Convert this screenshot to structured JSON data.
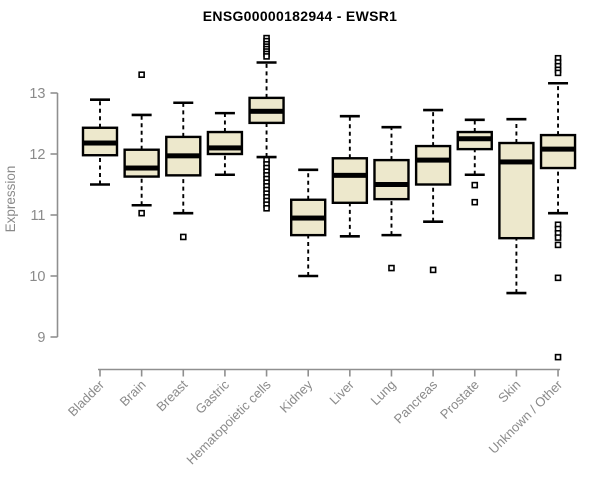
{
  "header": {
    "title": "ENSG00000182944 - EWSR1"
  },
  "chart_data": {
    "type": "boxplot",
    "title": "ENSG00000182944 - EWSR1",
    "xlabel": "",
    "ylabel": "Expression",
    "ylim": [
      8.5,
      14.0
    ],
    "yticks": [
      9,
      10,
      11,
      12,
      13
    ],
    "grid": false,
    "legend": "none",
    "colors": {
      "box_fill": "#ede8cc",
      "box_stroke": "#000000",
      "median": "#000000",
      "whisker": "#000000",
      "axis": "#8f8f8f",
      "tick_text": "#8a8a8a",
      "title_text": "#000000",
      "background": "#ffffff"
    },
    "categories": [
      "Bladder",
      "Brain",
      "Breast",
      "Gastric",
      "Hematopoietic cells",
      "Kidney",
      "Liver",
      "Lung",
      "Pancreas",
      "Prostate",
      "Skin",
      "Unknown / Other"
    ],
    "series": [
      {
        "name": "Bladder",
        "low": 11.5,
        "q1": 11.98,
        "median": 12.18,
        "q3": 12.43,
        "high": 12.89,
        "outliers": []
      },
      {
        "name": "Brain",
        "low": 11.16,
        "q1": 11.63,
        "median": 11.77,
        "q3": 12.07,
        "high": 12.64,
        "outliers": [
          13.3,
          11.03
        ]
      },
      {
        "name": "Breast",
        "low": 11.03,
        "q1": 11.65,
        "median": 11.97,
        "q3": 12.28,
        "high": 12.84,
        "outliers": [
          10.64
        ]
      },
      {
        "name": "Gastric",
        "low": 11.66,
        "q1": 12.0,
        "median": 12.1,
        "q3": 12.36,
        "high": 12.67,
        "outliers": []
      },
      {
        "name": "Hematopoietic cells",
        "low": 11.95,
        "q1": 12.51,
        "median": 12.7,
        "q3": 12.92,
        "high": 13.5,
        "outliers": [
          13.9,
          13.85,
          13.8,
          13.76,
          13.72,
          13.68,
          13.64,
          13.6,
          11.9,
          11.83,
          11.77,
          11.71,
          11.65,
          11.59,
          11.53,
          11.47,
          11.41,
          11.35,
          11.29,
          11.23,
          11.17,
          11.11
        ]
      },
      {
        "name": "Kidney",
        "low": 10.0,
        "q1": 10.67,
        "median": 10.95,
        "q3": 11.25,
        "high": 11.74,
        "outliers": []
      },
      {
        "name": "Liver",
        "low": 10.65,
        "q1": 11.2,
        "median": 11.65,
        "q3": 11.93,
        "high": 12.62,
        "outliers": []
      },
      {
        "name": "Lung",
        "low": 10.67,
        "q1": 11.26,
        "median": 11.5,
        "q3": 11.9,
        "high": 12.44,
        "outliers": [
          10.13
        ]
      },
      {
        "name": "Pancreas",
        "low": 10.89,
        "q1": 11.5,
        "median": 11.9,
        "q3": 12.13,
        "high": 12.72,
        "outliers": [
          10.1
        ]
      },
      {
        "name": "Prostate",
        "low": 11.66,
        "q1": 12.08,
        "median": 12.25,
        "q3": 12.36,
        "high": 12.56,
        "outliers": [
          11.49,
          11.21
        ]
      },
      {
        "name": "Skin",
        "low": 9.72,
        "q1": 10.62,
        "median": 11.87,
        "q3": 12.18,
        "high": 12.57,
        "outliers": []
      },
      {
        "name": "Unknown / Other",
        "low": 11.03,
        "q1": 11.77,
        "median": 12.08,
        "q3": 12.31,
        "high": 13.16,
        "outliers": [
          13.57,
          13.5,
          13.44,
          13.38,
          13.33,
          10.84,
          10.77,
          10.7,
          10.63,
          10.51,
          9.97,
          8.67
        ]
      }
    ]
  }
}
